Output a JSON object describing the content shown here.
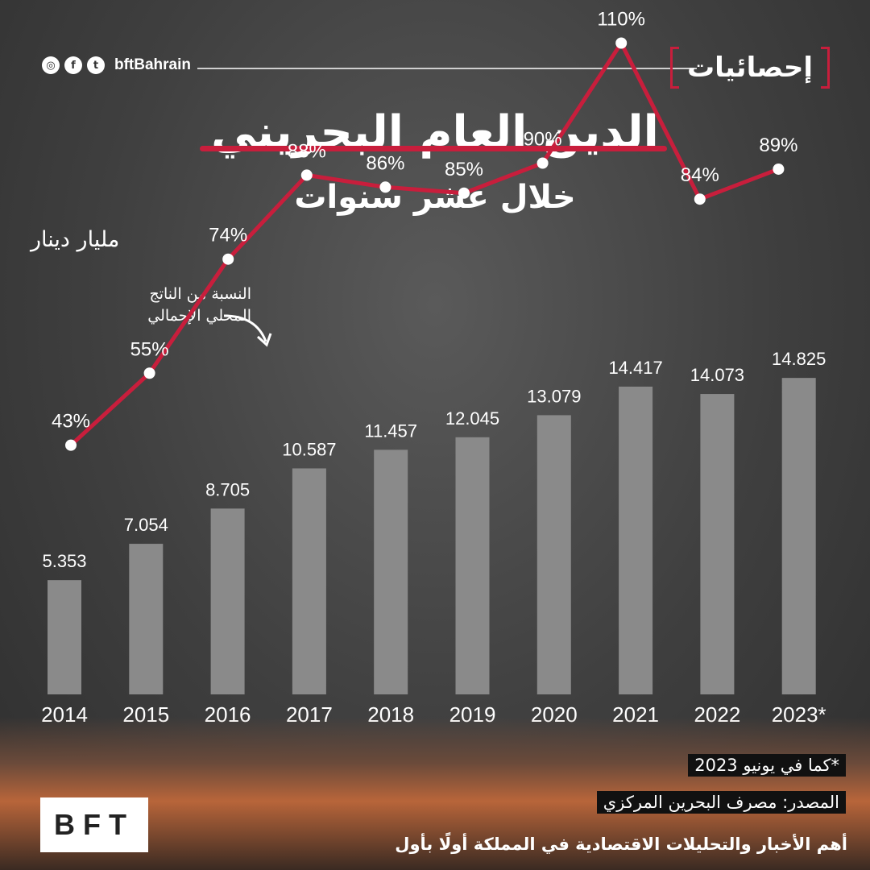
{
  "header": {
    "social_icons": [
      "instagram-icon",
      "facebook-icon",
      "twitter-icon"
    ],
    "handle": "bftBahrain",
    "logo_text": "إحصائيات"
  },
  "title": "الدين العام البحريني",
  "subtitle": "خلال عشر سنوات",
  "unit_label": "مليار دينار",
  "annotation": [
    "النسبة من الناتج",
    "المحلي الإجمالي"
  ],
  "colors": {
    "accent": "#c81e3c",
    "bar": "#8a8a8a"
  },
  "chart_data": {
    "type": "bar",
    "categories": [
      "2014",
      "2015",
      "2016",
      "2017",
      "2018",
      "2019",
      "2020",
      "2021",
      "2022",
      "2023*"
    ],
    "values": [
      5.353,
      7.054,
      8.705,
      10.587,
      11.457,
      12.045,
      13.079,
      14.417,
      14.073,
      14.825
    ],
    "value_labels": [
      "5.353",
      "7.054",
      "8.705",
      "10.587",
      "11.457",
      "12.045",
      "13.079",
      "14.417",
      "14.073",
      "14.825"
    ],
    "ylabel": "مليار دينار",
    "line_series": {
      "values": [
        43,
        55,
        74,
        88,
        86,
        85,
        90,
        110,
        84,
        89
      ],
      "labels": [
        "43%",
        "55%",
        "74%",
        "88%",
        "86%",
        "85%",
        "90%",
        "110%",
        "84%",
        "89%"
      ]
    },
    "grid": false
  },
  "footnotes": {
    "asof": "*كما في يونيو 2023",
    "source": "المصدر: مصرف البحرين المركزي"
  },
  "tagline": "أهم الأخبار والتحليلات الاقتصادية في المملكة أولًا بأول",
  "brand": "BFT"
}
